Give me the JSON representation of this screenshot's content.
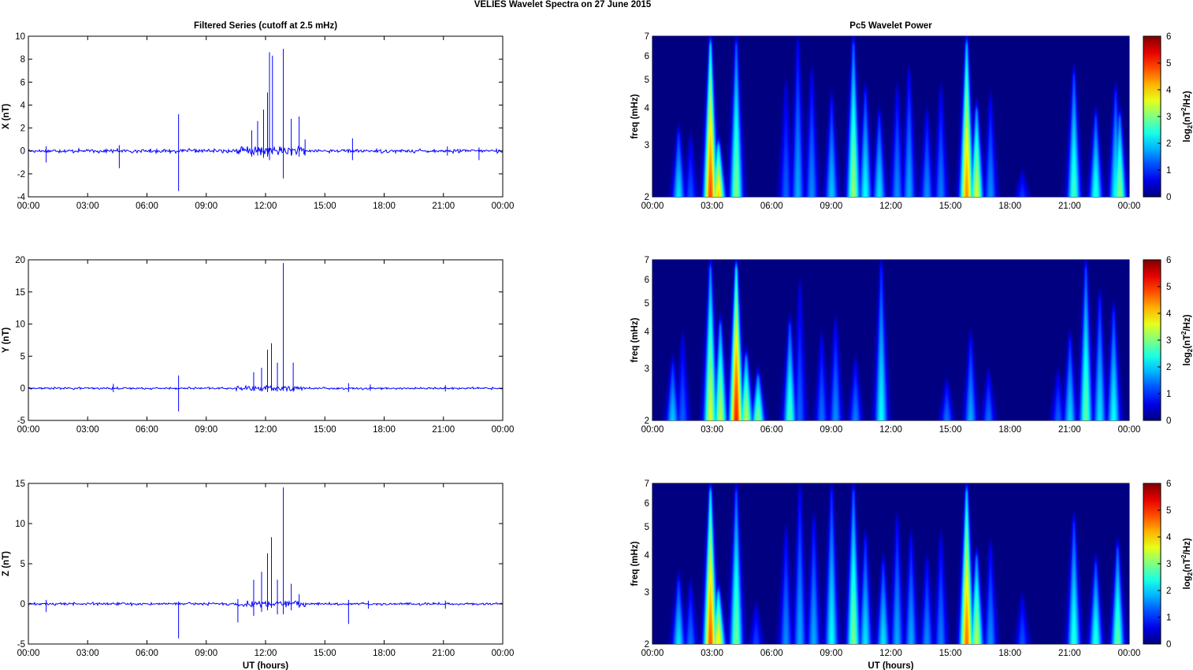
{
  "figure_title": "VELIES Wavelet Spectra on 27 June      2015",
  "chart_data": [
    {
      "type": "line",
      "title": "Filtered Series (cutoff at 2.5 mHz)",
      "xlabel": "",
      "ylabel": "X (nT)",
      "xticks": [
        "00:00",
        "03:00",
        "06:00",
        "09:00",
        "12:00",
        "15:00",
        "18:00",
        "21:00",
        "00:00"
      ],
      "ylim": [
        -4,
        10
      ],
      "yticks": [
        -4,
        -2,
        0,
        2,
        4,
        6,
        8,
        10
      ],
      "series_color": "#0000ff",
      "spikes": [
        {
          "hour": 0.9,
          "min": -1.0,
          "max": 0.4
        },
        {
          "hour": 4.6,
          "min": -1.5,
          "max": 0.5
        },
        {
          "hour": 7.6,
          "min": -3.5,
          "max": 3.2
        },
        {
          "hour": 11.3,
          "min": -0.5,
          "max": 1.8
        },
        {
          "hour": 11.6,
          "min": -0.4,
          "max": 2.6
        },
        {
          "hour": 11.9,
          "min": -0.6,
          "max": 3.6
        },
        {
          "hour": 12.1,
          "min": -0.5,
          "max": 5.1
        },
        {
          "hour": 12.2,
          "min": -0.8,
          "max": 8.6
        },
        {
          "hour": 12.35,
          "min": -0.3,
          "max": 8.3
        },
        {
          "hour": 12.9,
          "min": -2.4,
          "max": 8.9
        },
        {
          "hour": 13.3,
          "min": -0.4,
          "max": 2.8
        },
        {
          "hour": 13.7,
          "min": -0.5,
          "max": 3.0
        },
        {
          "hour": 14.0,
          "min": -0.4,
          "max": 1.0
        },
        {
          "hour": 16.4,
          "min": -0.8,
          "max": 1.1
        },
        {
          "hour": 21.2,
          "min": -0.4,
          "max": 0.4
        },
        {
          "hour": 22.8,
          "min": -0.8,
          "max": 0.3
        }
      ]
    },
    {
      "type": "line",
      "title": "",
      "xlabel": "",
      "ylabel": "Y (nT)",
      "xticks": [
        "00:00",
        "03:00",
        "06:00",
        "09:00",
        "12:00",
        "15:00",
        "18:00",
        "21:00",
        "00:00"
      ],
      "ylim": [
        -5,
        20
      ],
      "yticks": [
        -5,
        0,
        5,
        10,
        15,
        20
      ],
      "series_color": "#0000ff",
      "spikes": [
        {
          "hour": 4.3,
          "min": -0.6,
          "max": 0.7
        },
        {
          "hour": 7.6,
          "min": -3.6,
          "max": 2.0
        },
        {
          "hour": 11.4,
          "min": -0.4,
          "max": 2.5
        },
        {
          "hour": 11.8,
          "min": -0.5,
          "max": 3.2
        },
        {
          "hour": 12.1,
          "min": -0.6,
          "max": 6.0
        },
        {
          "hour": 12.3,
          "min": -0.4,
          "max": 7.0
        },
        {
          "hour": 12.6,
          "min": -0.5,
          "max": 4.0
        },
        {
          "hour": 12.9,
          "min": -0.4,
          "max": 19.5
        },
        {
          "hour": 13.4,
          "min": -0.5,
          "max": 4.0
        },
        {
          "hour": 16.2,
          "min": -0.6,
          "max": 0.8
        },
        {
          "hour": 17.3,
          "min": -0.4,
          "max": 0.6
        },
        {
          "hour": 21.1,
          "min": -0.5,
          "max": 0.5
        }
      ]
    },
    {
      "type": "line",
      "title": "",
      "xlabel": "UT (hours)",
      "ylabel": "Z (nT)",
      "xticks": [
        "00:00",
        "03:00",
        "06:00",
        "09:00",
        "12:00",
        "15:00",
        "18:00",
        "21:00",
        "00:00"
      ],
      "ylim": [
        -5,
        15
      ],
      "yticks": [
        -5,
        0,
        5,
        10,
        15
      ],
      "series_color": "#0000ff",
      "spikes": [
        {
          "hour": 0.9,
          "min": -1.0,
          "max": 0.5
        },
        {
          "hour": 7.6,
          "min": -4.3,
          "max": 0.3
        },
        {
          "hour": 10.6,
          "min": -2.3,
          "max": 0.6
        },
        {
          "hour": 11.4,
          "min": -1.5,
          "max": 3.0
        },
        {
          "hour": 11.8,
          "min": -1.0,
          "max": 4.0
        },
        {
          "hour": 12.1,
          "min": -0.8,
          "max": 6.3
        },
        {
          "hour": 12.3,
          "min": -0.5,
          "max": 8.3
        },
        {
          "hour": 12.6,
          "min": -1.3,
          "max": 3.0
        },
        {
          "hour": 12.9,
          "min": -1.3,
          "max": 14.5
        },
        {
          "hour": 13.3,
          "min": -0.8,
          "max": 2.5
        },
        {
          "hour": 13.7,
          "min": -0.5,
          "max": 1.2
        },
        {
          "hour": 16.2,
          "min": -2.5,
          "max": 0.5
        },
        {
          "hour": 17.2,
          "min": -0.6,
          "max": 0.4
        },
        {
          "hour": 21.1,
          "min": -0.6,
          "max": 0.4
        }
      ]
    },
    {
      "type": "heatmap",
      "title": "Pc5 Wavelet Power",
      "xlabel": "",
      "ylabel": "freq (mHz)",
      "xticks": [
        "00:00",
        "03:00",
        "06:00",
        "09:00",
        "12:00",
        "15:00",
        "18:00",
        "21:00",
        "00:00"
      ],
      "ylim": [
        2,
        7
      ],
      "yscale": "log",
      "yticks": [
        2,
        3,
        4,
        5,
        6,
        7
      ],
      "colorbar": {
        "label": "log2(nT^2/Hz)",
        "ticks": [
          0,
          1,
          2,
          3,
          4,
          5,
          6
        ],
        "range": [
          0,
          6
        ],
        "colormap": "jet"
      },
      "blobs": [
        {
          "hour": 1.3,
          "power": 2.4,
          "top_freq": 3.5
        },
        {
          "hour": 1.9,
          "power": 1.4,
          "top_freq": 3.3
        },
        {
          "hour": 2.9,
          "power": 5.5,
          "top_freq": 7.0
        },
        {
          "hour": 3.3,
          "power": 4.6,
          "top_freq": 3.2
        },
        {
          "hour": 4.2,
          "power": 3.4,
          "top_freq": 7.0
        },
        {
          "hour": 6.7,
          "power": 1.5,
          "top_freq": 5.0
        },
        {
          "hour": 7.3,
          "power": 2.0,
          "top_freq": 7.0
        },
        {
          "hour": 8.0,
          "power": 1.8,
          "top_freq": 5.5
        },
        {
          "hour": 9.0,
          "power": 2.2,
          "top_freq": 4.5
        },
        {
          "hour": 10.1,
          "power": 3.6,
          "top_freq": 7.0
        },
        {
          "hour": 10.7,
          "power": 2.6,
          "top_freq": 4.8
        },
        {
          "hour": 11.4,
          "power": 2.4,
          "top_freq": 4.0
        },
        {
          "hour": 12.3,
          "power": 1.8,
          "top_freq": 4.8
        },
        {
          "hour": 12.9,
          "power": 2.0,
          "top_freq": 5.5
        },
        {
          "hour": 13.8,
          "power": 1.8,
          "top_freq": 4.0
        },
        {
          "hour": 14.5,
          "power": 1.7,
          "top_freq": 4.8
        },
        {
          "hour": 15.8,
          "power": 5.0,
          "top_freq": 7.0
        },
        {
          "hour": 16.3,
          "power": 4.0,
          "top_freq": 4.2
        },
        {
          "hour": 17.0,
          "power": 1.8,
          "top_freq": 4.5
        },
        {
          "hour": 18.6,
          "power": 1.2,
          "top_freq": 2.5
        },
        {
          "hour": 21.2,
          "power": 3.0,
          "top_freq": 5.5
        },
        {
          "hour": 22.3,
          "power": 2.8,
          "top_freq": 4.0
        },
        {
          "hour": 23.3,
          "power": 2.6,
          "top_freq": 4.8
        },
        {
          "hour": 23.5,
          "power": 3.5,
          "top_freq": 4.0
        }
      ]
    },
    {
      "type": "heatmap",
      "title": "",
      "xlabel": "",
      "ylabel": "freq (mHz)",
      "xticks": [
        "00:00",
        "03:00",
        "06:00",
        "09:00",
        "12:00",
        "15:00",
        "18:00",
        "21:00",
        "00:00"
      ],
      "ylim": [
        2,
        7
      ],
      "yscale": "log",
      "yticks": [
        2,
        3,
        4,
        5,
        6,
        7
      ],
      "colorbar": {
        "label": "log2(nT^2/Hz)",
        "ticks": [
          0,
          1,
          2,
          3,
          4,
          5,
          6
        ],
        "range": [
          0,
          6
        ],
        "colormap": "jet"
      },
      "blobs": [
        {
          "hour": 1.0,
          "power": 2.2,
          "top_freq": 3.3
        },
        {
          "hour": 1.5,
          "power": 1.5,
          "top_freq": 4.0
        },
        {
          "hour": 2.9,
          "power": 4.0,
          "top_freq": 7.0
        },
        {
          "hour": 3.4,
          "power": 3.8,
          "top_freq": 4.5
        },
        {
          "hour": 4.2,
          "power": 5.8,
          "top_freq": 7.0
        },
        {
          "hour": 4.7,
          "power": 3.8,
          "top_freq": 3.5
        },
        {
          "hour": 5.3,
          "power": 3.4,
          "top_freq": 3.0
        },
        {
          "hour": 6.9,
          "power": 3.0,
          "top_freq": 4.5
        },
        {
          "hour": 7.4,
          "power": 1.5,
          "top_freq": 6.0
        },
        {
          "hour": 8.5,
          "power": 1.6,
          "top_freq": 4.0
        },
        {
          "hour": 9.2,
          "power": 1.8,
          "top_freq": 4.5
        },
        {
          "hour": 10.2,
          "power": 1.7,
          "top_freq": 3.3
        },
        {
          "hour": 11.5,
          "power": 2.6,
          "top_freq": 7.0
        },
        {
          "hour": 14.8,
          "power": 1.6,
          "top_freq": 2.8
        },
        {
          "hour": 16.0,
          "power": 2.0,
          "top_freq": 4.0
        },
        {
          "hour": 16.9,
          "power": 1.6,
          "top_freq": 3.0
        },
        {
          "hour": 20.4,
          "power": 1.5,
          "top_freq": 3.0
        },
        {
          "hour": 21.0,
          "power": 2.3,
          "top_freq": 4.0
        },
        {
          "hour": 21.8,
          "power": 3.2,
          "top_freq": 7.0
        },
        {
          "hour": 22.5,
          "power": 2.4,
          "top_freq": 5.5
        },
        {
          "hour": 23.2,
          "power": 2.6,
          "top_freq": 5.0
        }
      ]
    },
    {
      "type": "heatmap",
      "title": "",
      "xlabel": "UT (hours)",
      "ylabel": "freq (mHz)",
      "xticks": [
        "00:00",
        "03:00",
        "06:00",
        "09:00",
        "12:00",
        "15:00",
        "18:00",
        "21:00",
        "00:00"
      ],
      "ylim": [
        2,
        7
      ],
      "yscale": "log",
      "yticks": [
        2,
        3,
        4,
        5,
        6,
        7
      ],
      "colorbar": {
        "label": "log2(nT^2/Hz)",
        "ticks": [
          0,
          1,
          2,
          3,
          4,
          5,
          6
        ],
        "range": [
          0,
          6
        ],
        "colormap": "jet"
      },
      "blobs": [
        {
          "hour": 1.3,
          "power": 2.4,
          "top_freq": 3.5
        },
        {
          "hour": 1.9,
          "power": 1.6,
          "top_freq": 3.3
        },
        {
          "hour": 2.9,
          "power": 5.4,
          "top_freq": 7.0
        },
        {
          "hour": 3.3,
          "power": 4.4,
          "top_freq": 3.2
        },
        {
          "hour": 4.2,
          "power": 3.3,
          "top_freq": 7.0
        },
        {
          "hour": 5.2,
          "power": 1.3,
          "top_freq": 2.8
        },
        {
          "hour": 6.7,
          "power": 1.8,
          "top_freq": 5.0
        },
        {
          "hour": 7.4,
          "power": 2.0,
          "top_freq": 7.0
        },
        {
          "hour": 8.1,
          "power": 2.0,
          "top_freq": 5.5
        },
        {
          "hour": 9.0,
          "power": 2.6,
          "top_freq": 7.0
        },
        {
          "hour": 10.1,
          "power": 3.4,
          "top_freq": 7.0
        },
        {
          "hour": 10.7,
          "power": 2.4,
          "top_freq": 4.8
        },
        {
          "hour": 11.6,
          "power": 2.4,
          "top_freq": 4.0
        },
        {
          "hour": 12.3,
          "power": 2.0,
          "top_freq": 5.5
        },
        {
          "hour": 13.0,
          "power": 2.0,
          "top_freq": 4.8
        },
        {
          "hour": 13.8,
          "power": 1.8,
          "top_freq": 4.0
        },
        {
          "hour": 14.5,
          "power": 1.7,
          "top_freq": 4.8
        },
        {
          "hour": 15.8,
          "power": 5.2,
          "top_freq": 7.0
        },
        {
          "hour": 16.3,
          "power": 3.8,
          "top_freq": 4.2
        },
        {
          "hour": 17.0,
          "power": 1.8,
          "top_freq": 4.5
        },
        {
          "hour": 18.6,
          "power": 1.4,
          "top_freq": 3.0
        },
        {
          "hour": 21.2,
          "power": 2.8,
          "top_freq": 5.5
        },
        {
          "hour": 22.3,
          "power": 2.8,
          "top_freq": 4.0
        },
        {
          "hour": 23.4,
          "power": 3.2,
          "top_freq": 4.5
        }
      ]
    }
  ]
}
